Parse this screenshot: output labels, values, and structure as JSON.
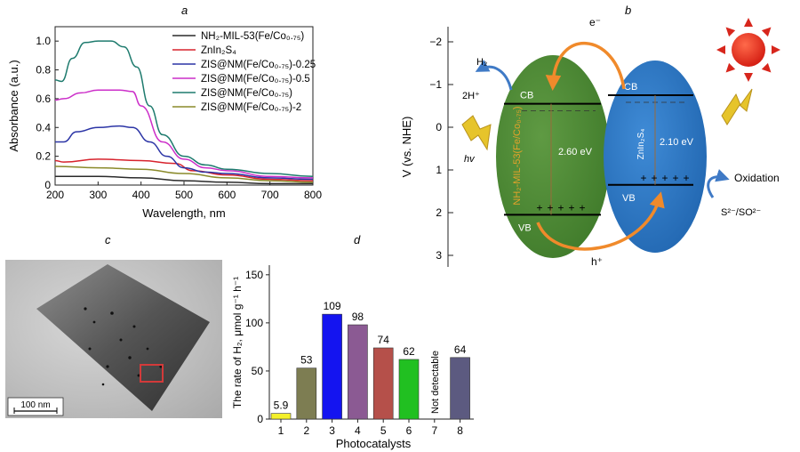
{
  "panels": {
    "a": {
      "label": "a"
    },
    "b": {
      "label": "b"
    },
    "c": {
      "label": "c"
    },
    "d": {
      "label": "d"
    }
  },
  "chart_data": [
    {
      "type": "line",
      "title": "",
      "xlabel": "Wavelength, nm",
      "ylabel": "Absorbance (a.u.)",
      "xlim": [
        200,
        800
      ],
      "ylim": [
        0,
        1.1
      ],
      "xticks": [
        "200",
        "300",
        "400",
        "500",
        "600",
        "700",
        "800"
      ],
      "yticks": [
        "0",
        "0.2",
        "0.4",
        "0.6",
        "0.8",
        "1.0"
      ],
      "legend_position": "top-right",
      "series": [
        {
          "name": "NH₂-MIL-53(Fe/Co₀.₇₅)",
          "color": "#2b2b2b",
          "x": [
            200,
            300,
            400,
            500,
            600,
            700,
            800
          ],
          "y": [
            0.06,
            0.06,
            0.05,
            0.03,
            0.02,
            0.01,
            0.01
          ]
        },
        {
          "name": "ZnIn₂S₄",
          "color": "#d7232d",
          "x": [
            200,
            220,
            300,
            400,
            480,
            520,
            600,
            700,
            800
          ],
          "y": [
            0.17,
            0.16,
            0.18,
            0.17,
            0.15,
            0.1,
            0.07,
            0.04,
            0.03
          ]
        },
        {
          "name": "ZIS@NM(Fe/Co₀.₇₅)-0.25",
          "color": "#2c35a6",
          "x": [
            200,
            220,
            250,
            300,
            350,
            380,
            420,
            460,
            500,
            550,
            600,
            700,
            800
          ],
          "y": [
            0.3,
            0.3,
            0.37,
            0.4,
            0.41,
            0.4,
            0.3,
            0.2,
            0.12,
            0.09,
            0.08,
            0.05,
            0.04
          ]
        },
        {
          "name": "ZIS@NM(Fe/Co₀.₇₅)-0.5",
          "color": "#cc2fc9",
          "x": [
            200,
            220,
            260,
            300,
            350,
            380,
            400,
            450,
            500,
            550,
            600,
            700,
            800
          ],
          "y": [
            0.59,
            0.6,
            0.64,
            0.66,
            0.66,
            0.65,
            0.55,
            0.3,
            0.18,
            0.12,
            0.1,
            0.06,
            0.05
          ]
        },
        {
          "name": "ZIS@NM(Fe/Co₀.₇₅)",
          "color": "#1e7b6e",
          "x": [
            200,
            215,
            240,
            270,
            300,
            330,
            360,
            390,
            420,
            450,
            500,
            550,
            600,
            700,
            800
          ],
          "y": [
            0.73,
            0.72,
            0.88,
            0.99,
            1.0,
            1.0,
            0.96,
            0.82,
            0.55,
            0.35,
            0.2,
            0.14,
            0.11,
            0.08,
            0.06
          ]
        },
        {
          "name": "ZIS@NM(Fe/Co₀.₇₅)-2",
          "color": "#8a8a2a",
          "x": [
            200,
            300,
            400,
            500,
            600,
            700,
            800
          ],
          "y": [
            0.13,
            0.12,
            0.11,
            0.08,
            0.05,
            0.03,
            0.02
          ]
        }
      ]
    },
    {
      "type": "diagram",
      "ylabel": "V (vs. NHE)",
      "ylim": [
        -2.5,
        3.5
      ],
      "yticks": [
        "−2",
        "−1",
        "0",
        "1",
        "2",
        "3"
      ],
      "semiconductors": [
        {
          "name": "NH₂-MIL-53(Fe/Co₀.₇₅)",
          "color": "#4d8b33",
          "cb": -0.55,
          "vb": 2.05,
          "gap": "2.60 eV"
        },
        {
          "name": "ZnIn₂S₄",
          "color": "#2f78c4",
          "cb": -0.75,
          "vb": 1.35,
          "gap": "2.10 eV"
        }
      ],
      "labels": {
        "cb": "CB",
        "vb": "VB",
        "electron": "e⁻",
        "hole": "h⁺",
        "h2": "H₂",
        "proton": "2H⁺",
        "hv": "hv",
        "oxidation": "Oxidation",
        "sacrificial": "S²⁻/SO²⁻"
      }
    },
    {
      "type": "bar",
      "title": "",
      "xlabel": "Photocatalysts",
      "ylabel": "The rate of H₂, μmol g⁻¹ h⁻¹",
      "ylim": [
        0,
        160
      ],
      "yticks": [
        "0",
        "50",
        "100",
        "150"
      ],
      "categories": [
        "1",
        "2",
        "3",
        "4",
        "5",
        "6",
        "7",
        "8"
      ],
      "values": [
        5.9,
        53,
        109,
        98,
        74,
        62,
        null,
        64
      ],
      "value_labels": [
        "5.9",
        "53",
        "109",
        "98",
        "74",
        "62",
        "Not detectable",
        "64"
      ],
      "colors": [
        "#f4f02a",
        "#7d7d52",
        "#1414f0",
        "#8b5a93",
        "#b5504a",
        "#21c021",
        "#ffffff",
        "#5c5a80"
      ]
    }
  ],
  "tem": {
    "scale_bar": "100 nm"
  }
}
